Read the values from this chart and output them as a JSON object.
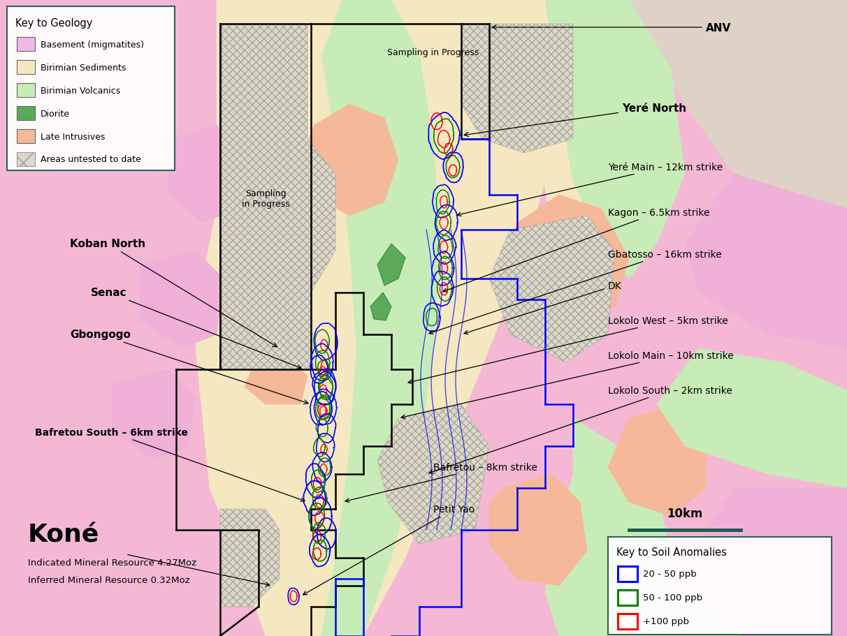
{
  "background_color": "#f4b8d4",
  "fig_width": 12.12,
  "fig_height": 9.12,
  "colors": {
    "basement": "#f4b8d4",
    "sediments": "#f5e8c0",
    "volcanics": "#c8ecb8",
    "diorite": "#5aaa5a",
    "late_intrusives": "#f5b898",
    "hatch_fill": "#ddd8cc",
    "hatch_edge": "#aaa898"
  },
  "geology_legend": {
    "title": "Key to Geology",
    "items": [
      {
        "label": "Basement (migmatites)",
        "color": "#f0b8e8"
      },
      {
        "label": "Birimian Sediments",
        "color": "#f5e8c0"
      },
      {
        "label": "Birimian Volcanics",
        "color": "#c8ecb8"
      },
      {
        "label": "Diorite",
        "color": "#5aaa5a"
      },
      {
        "label": "Late Intrusives",
        "color": "#f5b898"
      },
      {
        "label": "Areas untested to date",
        "color": "#ddd8cc",
        "hatch": "x"
      }
    ]
  },
  "soil_anomaly_legend": {
    "title": "Key to Soil Anomalies",
    "items": [
      {
        "label": "20 - 50 ppb",
        "color": "blue"
      },
      {
        "label": "50 - 100 ppb",
        "color": "green"
      },
      {
        "label": "+100 ppb",
        "color": "red"
      }
    ]
  },
  "scale_bar": {
    "label": "10km",
    "color": "#1a5c4a"
  }
}
